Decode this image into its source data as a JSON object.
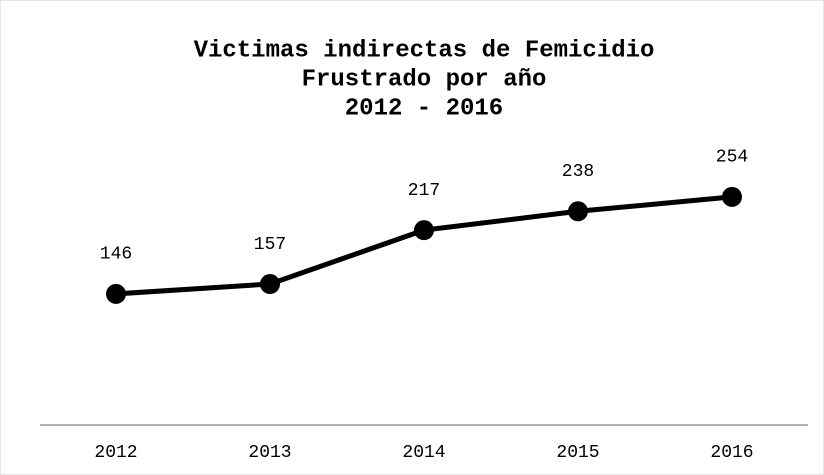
{
  "chart_data": {
    "type": "line",
    "title": [
      "Victimas indirectas de Femicidio",
      "Frustrado por año",
      "2012 - 2016"
    ],
    "categories": [
      "2012",
      "2013",
      "2014",
      "2015",
      "2016"
    ],
    "series": [
      {
        "name": "Victimas indirectas",
        "color": "#000000",
        "values": [
          146,
          157,
          217,
          238,
          254
        ]
      }
    ],
    "ylim": [
      0,
      300
    ]
  }
}
